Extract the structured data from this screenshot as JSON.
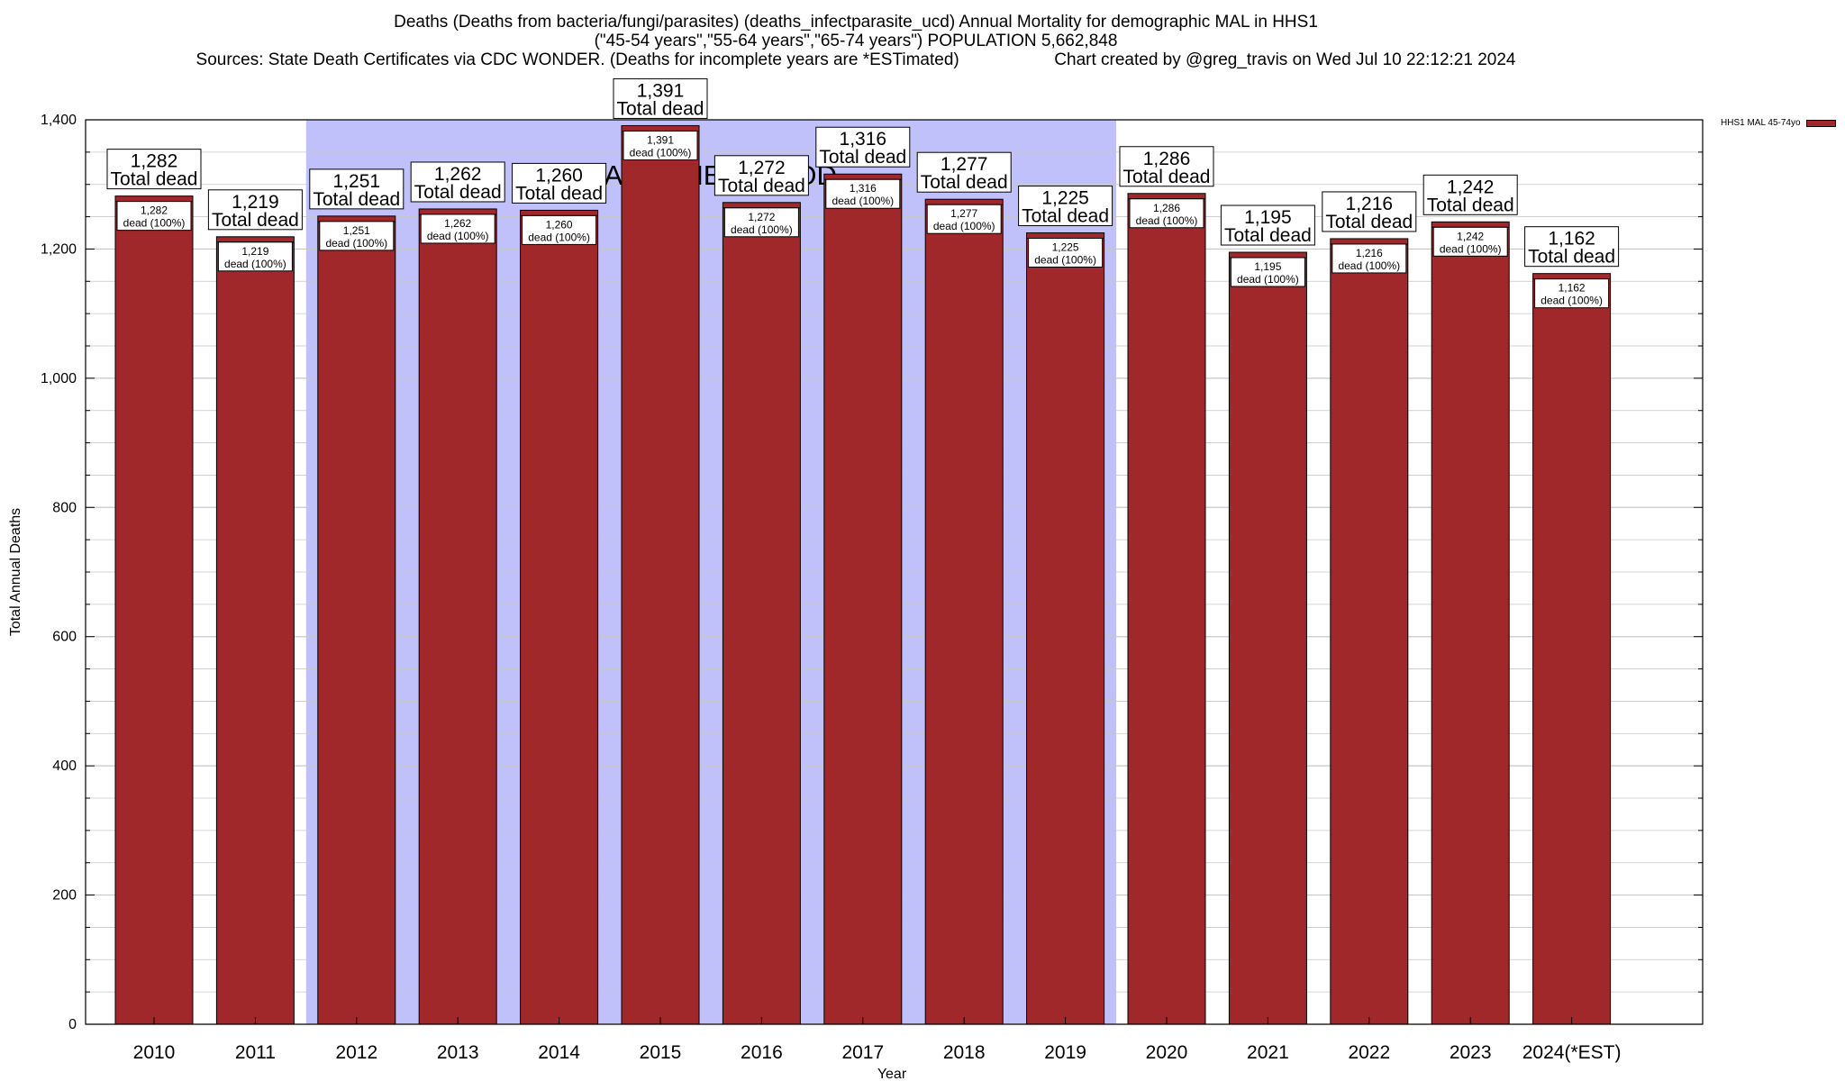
{
  "title": {
    "line1": "Deaths (Deaths from bacteria/fungi/parasites) (deaths_infectparasite_ucd) Annual Mortality for demographic MAL in HHS1",
    "line2": "(\"45-54 years\",\"55-64 years\",\"65-74 years\") POPULATION 5,662,848",
    "line3": "Sources: State Death Certificates via CDC WONDER. (Deaths for incomplete years are *ESTimated)                    Chart created by @greg_travis on Wed Jul 10 22:12:21 2024"
  },
  "chart_data": {
    "type": "bar",
    "categories": [
      "2010",
      "2011",
      "2012",
      "2013",
      "2014",
      "2015",
      "2016",
      "2017",
      "2018",
      "2019",
      "2020",
      "2021",
      "2022",
      "2023",
      "2024(*EST)"
    ],
    "series": [
      {
        "name": "HHS1 MAL 45-74yo",
        "values": [
          1282,
          1219,
          1251,
          1262,
          1260,
          1391,
          1272,
          1316,
          1277,
          1225,
          1286,
          1195,
          1216,
          1242,
          1162
        ]
      }
    ],
    "total_labels": [
      "1,282",
      "1,219",
      "1,251",
      "1,262",
      "1,260",
      "1,391",
      "1,272",
      "1,316",
      "1,277",
      "1,225",
      "1,286",
      "1,195",
      "1,216",
      "1,242",
      "1,162"
    ],
    "total_suffix": "Total dead",
    "inner_suffix": "dead (100%)",
    "xlabel": "Year",
    "ylabel": "Total Annual Deaths",
    "ylim": [
      0,
      1400
    ],
    "yticks": [
      0,
      200,
      400,
      600,
      800,
      1000,
      1200,
      1400
    ],
    "ytick_labels": [
      "0",
      "200",
      "400",
      "600",
      "800",
      "1,000",
      "1,200",
      "1,400"
    ],
    "baseline": {
      "label": "BASELINE PERIOD",
      "from": "2012",
      "to": "2019"
    },
    "grid": true,
    "legend_position": "top-right",
    "colors": {
      "bar": "#a0282a",
      "baseline": "#c0c0fa",
      "grid": "#c8c8c8"
    }
  }
}
